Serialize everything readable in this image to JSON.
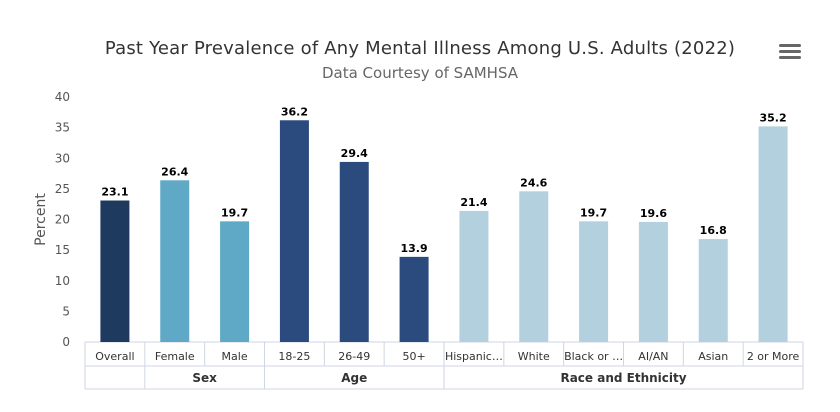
{
  "title": "Past Year Prevalence of Any Mental Illness Among U.S. Adults (2022)",
  "subtitle": "Data Courtesy of SAMHSA",
  "menu_icon": "hamburger-menu-icon",
  "chart_data": {
    "type": "bar",
    "ylabel": "Percent",
    "xlabel": "",
    "ylim": [
      0,
      40
    ],
    "yticks": [
      0,
      5,
      10,
      15,
      20,
      25,
      30,
      35,
      40
    ],
    "grid": false,
    "categories": [
      "Overall",
      "Female",
      "Male",
      "18-25",
      "26-49",
      "50+",
      "Hispanic…",
      "White",
      "Black or …",
      "AI/AN",
      "Asian",
      "2 or More"
    ],
    "values": [
      23.1,
      26.4,
      19.7,
      36.2,
      29.4,
      13.9,
      21.4,
      24.6,
      19.7,
      19.6,
      16.8,
      35.2
    ],
    "colors": [
      "#1f3a5f",
      "#5fa9c6",
      "#5fa9c6",
      "#2b4a7e",
      "#2b4a7e",
      "#2b4a7e",
      "#b2d0dd",
      "#b2d0dd",
      "#b2d0dd",
      "#b2d0dd",
      "#b2d0dd",
      "#b2d0dd"
    ],
    "groups": [
      {
        "label": "",
        "count": 1
      },
      {
        "label": "Sex",
        "count": 2
      },
      {
        "label": "Age",
        "count": 3
      },
      {
        "label": "Race and Ethnicity",
        "count": 6
      }
    ]
  }
}
